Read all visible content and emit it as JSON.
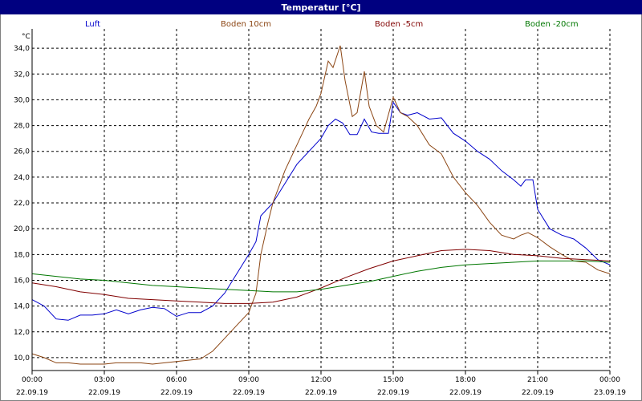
{
  "window": {
    "title": "Temperatur [°C]"
  },
  "colors": {
    "titlebar": "#000080",
    "grid": "#000000",
    "luft": "#0000cc",
    "boden10": "#8b4513",
    "boden5": "#800000",
    "boden20": "#007700"
  },
  "chart_data": {
    "type": "line",
    "title": "Temperatur [°C]",
    "ylabel": "°C",
    "xlabel": "",
    "ylim": [
      9,
      35.5
    ],
    "xlim": [
      0,
      24
    ],
    "yticks": [
      "10,0",
      "12,0",
      "14,0",
      "16,0",
      "18,0",
      "20,0",
      "22,0",
      "24,0",
      "26,0",
      "28,0",
      "30,0",
      "32,0",
      "34,0"
    ],
    "ytick_values": [
      10,
      12,
      14,
      16,
      18,
      20,
      22,
      24,
      26,
      28,
      30,
      32,
      34
    ],
    "xtick_values": [
      0,
      3,
      6,
      9,
      12,
      15,
      18,
      21,
      24
    ],
    "xticks": [
      {
        "time": "00:00",
        "date": "22.09.19"
      },
      {
        "time": "03:00",
        "date": "22.09.19"
      },
      {
        "time": "06:00",
        "date": "22.09.19"
      },
      {
        "time": "09:00",
        "date": "22.09.19"
      },
      {
        "time": "12:00",
        "date": "22.09.19"
      },
      {
        "time": "15:00",
        "date": "22.09.19"
      },
      {
        "time": "18:00",
        "date": "22.09.19"
      },
      {
        "time": "21:00",
        "date": "22.09.19"
      },
      {
        "time": "00:00",
        "date": "23.09.19"
      }
    ],
    "grid": true,
    "legend_position": "top",
    "series": [
      {
        "name": "Luft",
        "color": "#0000cc",
        "x": [
          0,
          0.5,
          1,
          1.5,
          2,
          2.5,
          3,
          3.5,
          4,
          4.5,
          5,
          5.5,
          6,
          6.5,
          7,
          7.5,
          8,
          8.5,
          9,
          9.3,
          9.5,
          10,
          10.5,
          11,
          11.5,
          12,
          12.3,
          12.6,
          12.9,
          13.2,
          13.5,
          13.8,
          14.1,
          14.4,
          14.8,
          15,
          15.3,
          15.6,
          16,
          16.5,
          17,
          17.5,
          18,
          18.5,
          19,
          19.5,
          20,
          20.3,
          20.5,
          20.8,
          21,
          21.5,
          22,
          22.5,
          23,
          23.5,
          24
        ],
        "y": [
          14.5,
          14.0,
          13.0,
          12.9,
          13.3,
          13.3,
          13.4,
          13.7,
          13.4,
          13.7,
          13.9,
          13.8,
          13.2,
          13.5,
          13.5,
          14.0,
          15.0,
          16.5,
          18.0,
          19.0,
          21.0,
          22.0,
          23.5,
          25.0,
          26.0,
          27.0,
          28.0,
          28.5,
          28.2,
          27.3,
          27.3,
          28.5,
          27.5,
          27.4,
          27.4,
          29.8,
          29.0,
          28.8,
          29.0,
          28.5,
          28.6,
          27.4,
          26.8,
          26.0,
          25.4,
          24.5,
          23.8,
          23.3,
          23.8,
          23.8,
          21.5,
          20.0,
          19.5,
          19.2,
          18.5,
          17.6,
          17.2
        ]
      },
      {
        "name": "Boden 10cm",
        "color": "#8b4513",
        "x": [
          0,
          0.5,
          1,
          1.5,
          2,
          2.5,
          3,
          3.5,
          4,
          4.5,
          5,
          5.5,
          6,
          6.5,
          7,
          7.5,
          8,
          8.5,
          9,
          9.3,
          9.5,
          9.8,
          10,
          10.5,
          11,
          11.5,
          11.8,
          12,
          12.3,
          12.5,
          12.8,
          13,
          13.3,
          13.5,
          13.8,
          14,
          14.3,
          14.6,
          15,
          15.3,
          15.6,
          16,
          16.5,
          17,
          17.5,
          18,
          18.5,
          19,
          19.5,
          20,
          20.3,
          20.6,
          21,
          21.5,
          22,
          22.5,
          23,
          23.5,
          24
        ],
        "y": [
          10.3,
          10.0,
          9.6,
          9.6,
          9.5,
          9.5,
          9.5,
          9.6,
          9.6,
          9.6,
          9.5,
          9.6,
          9.7,
          9.8,
          9.9,
          10.5,
          11.5,
          12.5,
          13.5,
          15.0,
          18.0,
          20.5,
          22.0,
          24.5,
          26.5,
          28.5,
          29.5,
          30.5,
          33.0,
          32.5,
          34.2,
          31.5,
          28.7,
          29.0,
          32.2,
          29.5,
          28.0,
          27.5,
          30.2,
          29.0,
          28.7,
          28.0,
          26.5,
          25.8,
          24.0,
          22.8,
          21.8,
          20.5,
          19.5,
          19.2,
          19.5,
          19.7,
          19.3,
          18.6,
          18.0,
          17.5,
          17.4,
          16.8,
          16.5
        ]
      },
      {
        "name": "Boden -5cm",
        "color": "#800000",
        "x": [
          0,
          1,
          2,
          3,
          4,
          5,
          6,
          7,
          8,
          9,
          10,
          11,
          12,
          13,
          14,
          15,
          16,
          17,
          18,
          19,
          20,
          21,
          22,
          23,
          24
        ],
        "y": [
          15.8,
          15.5,
          15.1,
          14.9,
          14.6,
          14.5,
          14.4,
          14.3,
          14.2,
          14.2,
          14.3,
          14.7,
          15.4,
          16.2,
          16.9,
          17.5,
          17.9,
          18.3,
          18.4,
          18.3,
          18.0,
          17.9,
          17.7,
          17.6,
          17.5
        ]
      },
      {
        "name": "Boden -20cm",
        "color": "#007700",
        "x": [
          0,
          1,
          2,
          3,
          4,
          5,
          6,
          7,
          8,
          9,
          10,
          11,
          12,
          13,
          14,
          15,
          16,
          17,
          18,
          19,
          20,
          21,
          22,
          23,
          24
        ],
        "y": [
          16.5,
          16.3,
          16.1,
          16.0,
          15.8,
          15.6,
          15.5,
          15.4,
          15.3,
          15.2,
          15.1,
          15.1,
          15.3,
          15.6,
          15.9,
          16.3,
          16.7,
          17.0,
          17.2,
          17.3,
          17.4,
          17.5,
          17.5,
          17.5,
          17.4
        ]
      }
    ]
  }
}
